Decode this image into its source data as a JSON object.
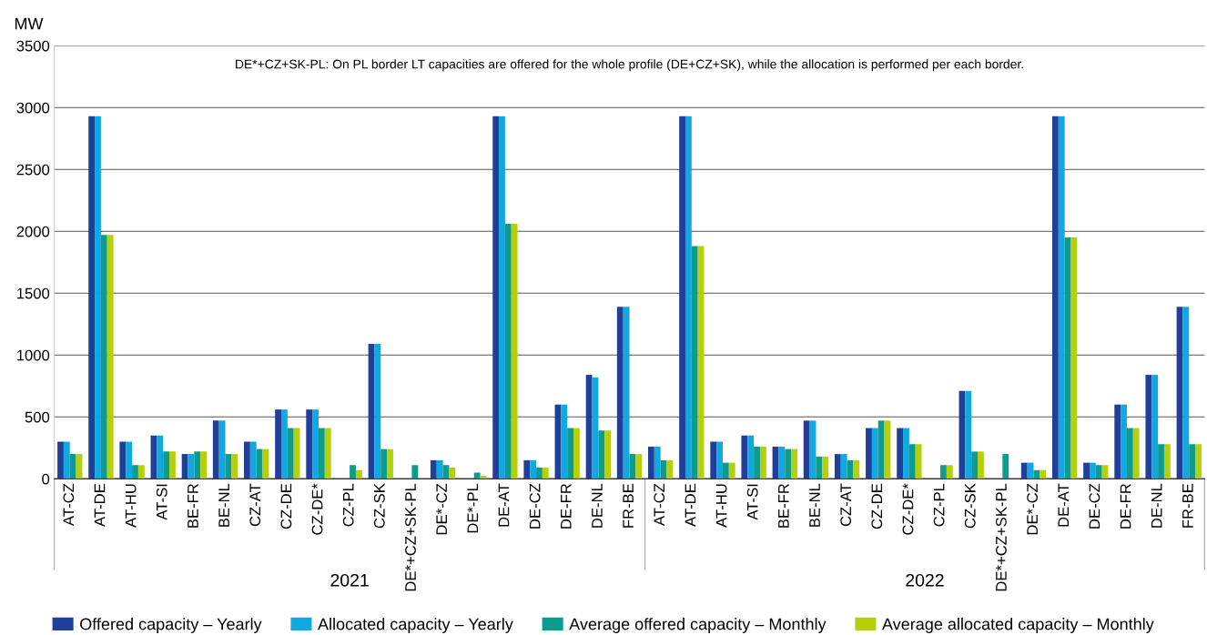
{
  "chart_data": {
    "type": "bar",
    "ylabel": "MW",
    "categories": [
      "AT-CZ",
      "AT-DE",
      "AT-HU",
      "AT-SI",
      "BE-FR",
      "BE-NL",
      "CZ-AT",
      "CZ-DE",
      "CZ-DE*",
      "CZ-PL",
      "CZ-SK",
      "DE*+CZ+SK-PL",
      "DE*-CZ",
      "DE*-PL",
      "DE-AT",
      "DE-CZ",
      "DE-FR",
      "DE-NL",
      "FR-BE",
      "AT-CZ",
      "AT-DE",
      "AT-HU",
      "AT-SI",
      "BE-FR",
      "BE-NL",
      "CZ-AT",
      "CZ-DE",
      "CZ-DE*",
      "CZ-PL",
      "CZ-SK",
      "DE*+CZ+SK-PL",
      "DE*-CZ",
      "DE-AT",
      "DE-CZ",
      "DE-FR",
      "DE-NL",
      "FR-BE"
    ],
    "series": [
      {
        "name": "Offered capacity – Yearly",
        "color": "#1f3f99",
        "values": [
          300,
          2930,
          300,
          350,
          200,
          470,
          300,
          560,
          560,
          null,
          1090,
          null,
          150,
          null,
          2930,
          150,
          600,
          840,
          1390,
          260,
          2930,
          300,
          350,
          260,
          470,
          200,
          410,
          410,
          null,
          710,
          null,
          130,
          2930,
          130,
          600,
          840,
          1390
        ]
      },
      {
        "name": "Allocated capacity – Yearly",
        "color": "#11a8df",
        "values": [
          300,
          2930,
          300,
          350,
          200,
          470,
          300,
          560,
          560,
          null,
          1090,
          null,
          150,
          null,
          2930,
          150,
          600,
          820,
          1390,
          260,
          2930,
          300,
          350,
          260,
          470,
          200,
          410,
          410,
          null,
          710,
          null,
          130,
          2930,
          130,
          600,
          840,
          1390
        ]
      },
      {
        "name": "Average offered capacity – Monthly",
        "color": "#0e9a8c",
        "values": [
          200,
          1970,
          110,
          220,
          220,
          200,
          240,
          410,
          410,
          110,
          240,
          110,
          110,
          50,
          2060,
          90,
          410,
          390,
          200,
          150,
          1880,
          130,
          260,
          240,
          180,
          150,
          470,
          280,
          110,
          220,
          200,
          70,
          1950,
          110,
          410,
          280,
          280
        ]
      },
      {
        "name": "Average allocated capacity – Monthly",
        "color": "#b5cf0c",
        "values": [
          200,
          1970,
          110,
          220,
          220,
          200,
          240,
          410,
          410,
          70,
          240,
          null,
          90,
          25,
          2060,
          90,
          410,
          390,
          200,
          150,
          1880,
          130,
          260,
          240,
          180,
          150,
          470,
          280,
          110,
          220,
          null,
          70,
          1950,
          110,
          410,
          280,
          280
        ]
      }
    ],
    "ylim": [
      0,
      3500
    ],
    "yticks": [
      0,
      500,
      1000,
      1500,
      2000,
      2500,
      3000,
      3500
    ],
    "grid": "y",
    "legend": "bottom",
    "annotations": [
      "DE*+CZ+SK-PL: On PL border LT capacities are offered for the whole profile (DE+CZ+SK), while the allocation is performed per each border.",
      "2021",
      "2022"
    ]
  }
}
